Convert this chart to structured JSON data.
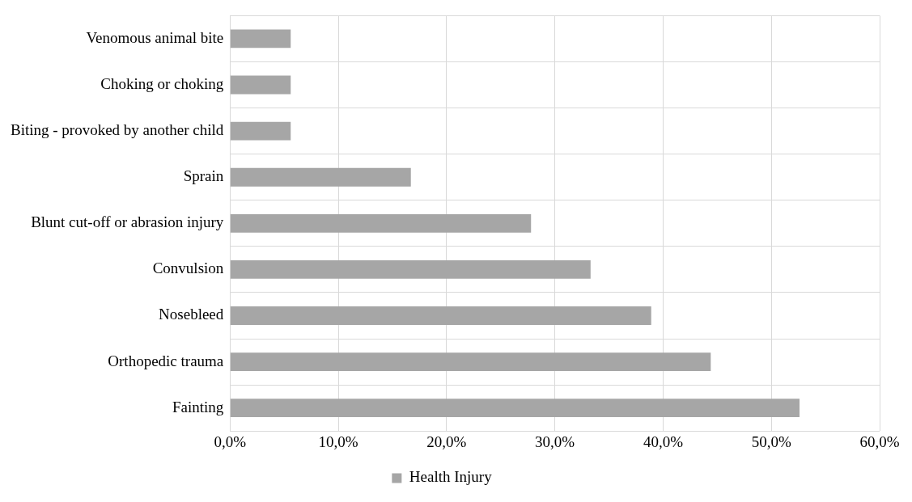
{
  "chart_data": {
    "type": "bar",
    "orientation": "horizontal",
    "categories": [
      "Venomous animal bite",
      "Choking or choking",
      "Biting - provoked by another child",
      "Sprain",
      "Blunt cut-off or abrasion injury",
      "Convulsion",
      "Nosebleed",
      "Orthopedic trauma",
      "Fainting"
    ],
    "series": [
      {
        "name": "Health Injury",
        "color": "#a6a6a6",
        "values": [
          5.6,
          5.6,
          5.6,
          16.7,
          27.8,
          33.3,
          38.9,
          44.4,
          52.6
        ]
      }
    ],
    "xlim": [
      0,
      60
    ],
    "xticks": [
      {
        "value": 0,
        "label": "0,0%"
      },
      {
        "value": 10,
        "label": "10,0%"
      },
      {
        "value": 20,
        "label": "20,0%"
      },
      {
        "value": 30,
        "label": "30,0%"
      },
      {
        "value": 40,
        "label": "40,0%"
      },
      {
        "value": 50,
        "label": "50,0%"
      },
      {
        "value": 60,
        "label": "60,0%"
      }
    ],
    "grid": true,
    "legend": "bottom"
  }
}
